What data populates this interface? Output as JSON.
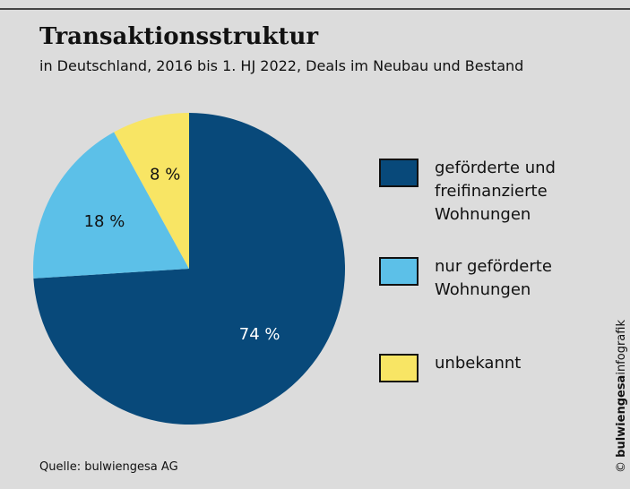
{
  "chart_data": {
    "type": "pie",
    "title": "Transaktionsstruktur",
    "subtitle": "in Deutschland, 2016 bis 1. HJ 2022, Deals im Neubau und Bestand",
    "categories": [
      "geförderte und freifinanzierte Wohnungen",
      "nur geförderte Wohnungen",
      "unbekannt"
    ],
    "values": [
      74,
      18,
      8
    ],
    "value_labels": [
      "74 %",
      "18 %",
      "8 %"
    ],
    "colors": [
      "#08497a",
      "#5cc0e8",
      "#f8e564"
    ],
    "source": "Quelle: bulwiengesa AG",
    "credit": {
      "symbol": "©",
      "brand": "bulwiengesa",
      "suffix": "infografik"
    }
  }
}
